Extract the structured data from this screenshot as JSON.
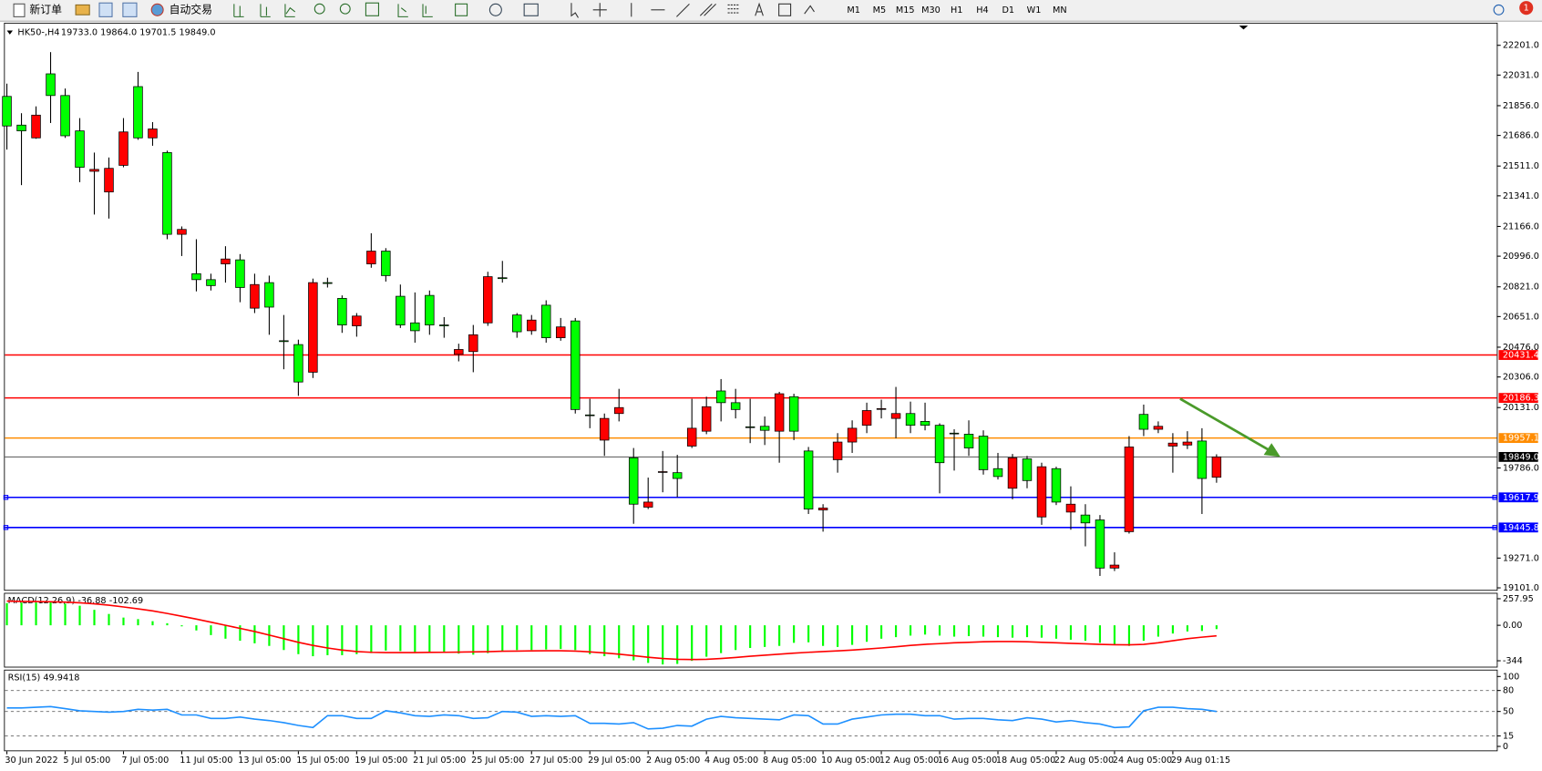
{
  "toolbar": {
    "buttons": [
      "新订单",
      "自动交易"
    ],
    "timeframes": [
      "M1",
      "M5",
      "M15",
      "M30",
      "H1",
      "H4",
      "D1",
      "W1",
      "MN"
    ],
    "notifications": "1"
  },
  "chart_data": {
    "type": "candlestick",
    "symbol": "HK50-,H4",
    "quote": "19733.0 19864.0 19701.5 19849.0",
    "categories": [
      "30 Jun 2022",
      null,
      null,
      null,
      "5 Jul 05:00",
      null,
      null,
      null,
      "7 Jul 05:00",
      null,
      null,
      null,
      "11 Jul 05:00",
      null,
      null,
      null,
      "13 Jul 05:00",
      null,
      null,
      null,
      "15 Jul 05:00",
      null,
      null,
      null,
      "19 Jul 05:00",
      null,
      null,
      null,
      "21 Jul 05:00",
      null,
      null,
      null,
      "25 Jul 05:00",
      null,
      null,
      null,
      "27 Jul 05:00",
      null,
      null,
      null,
      "29 Jul 05:00",
      null,
      null,
      null,
      "2 Aug 05:00",
      null,
      null,
      null,
      "4 Aug 05:00",
      null,
      null,
      null,
      "8 Aug 05:00",
      null,
      null,
      null,
      "10 Aug 05:00",
      null,
      null,
      null,
      "12 Aug 05:00",
      null,
      null,
      null,
      "16 Aug 05:00",
      null,
      null,
      null,
      "18 Aug 05:00",
      null,
      null,
      null,
      "22 Aug 05:00",
      null,
      null,
      null,
      "24 Aug 05:00",
      null,
      null,
      null,
      "29 Aug 01:15",
      null,
      null,
      null
    ],
    "open": [
      21909,
      21745,
      21672,
      22038,
      21914,
      21712,
      21481,
      21363,
      21515,
      21965,
      21672,
      21588,
      21121,
      20896,
      20862,
      20952,
      20975,
      20699,
      20845,
      20513,
      20491,
      20333,
      20845,
      20755,
      20598,
      20952,
      21025,
      20767,
      20615,
      20772,
      20603,
      20435,
      20451,
      20615,
      20873,
      20660,
      20570,
      20716,
      20530,
      20626,
      20089,
      19945,
      20097,
      19844,
      19562,
      19762,
      19759,
      19911,
      19996,
      20226,
      20159,
      20021,
      20024,
      19996,
      20193,
      19883,
      19546,
      19833,
      19934,
      20030,
      20122,
      20069,
      20097,
      20052,
      20030,
      19985,
      19979,
      19968,
      19782,
      19670,
      19838,
      19506,
      19782,
      19534,
      19517,
      19489,
      19214,
      19422,
      20092,
      20007,
      19911,
      19917,
      19940,
      19733
    ],
    "high": [
      21982,
      21813,
      21852,
      22162,
      21954,
      21785,
      21588,
      21560,
      21785,
      22049,
      21762,
      21599,
      21166,
      21093,
      20896,
      21053,
      21008,
      20896,
      20885,
      20660,
      20519,
      20868,
      20873,
      20772,
      20671,
      21127,
      21042,
      20834,
      20789,
      20800,
      20648,
      20496,
      20603,
      20907,
      20969,
      20671,
      20660,
      20744,
      20643,
      20643,
      20181,
      20097,
      20238,
      19900,
      19731,
      19883,
      19861,
      20181,
      20193,
      20294,
      20238,
      20181,
      20080,
      20221,
      20210,
      19906,
      19579,
      19985,
      20058,
      20159,
      20176,
      20249,
      20165,
      20159,
      20041,
      20007,
      20058,
      20001,
      19872,
      19866,
      19855,
      19816,
      19793,
      19681,
      19579,
      19517,
      19304,
      19968,
      20148,
      20052,
      19985,
      19996,
      20013,
      19864
    ],
    "low": [
      21605,
      21402,
      21667,
      21757,
      21672,
      21419,
      21234,
      21211,
      21504,
      21661,
      21627,
      21093,
      20997,
      20795,
      20800,
      20845,
      20733,
      20671,
      20547,
      20350,
      20198,
      20300,
      20817,
      20558,
      20536,
      20930,
      20851,
      20586,
      20502,
      20547,
      20530,
      20395,
      20333,
      20598,
      20845,
      20530,
      20547,
      20502,
      20513,
      20097,
      20013,
      19855,
      20052,
      19467,
      19551,
      19647,
      19619,
      19900,
      19979,
      20052,
      20069,
      19928,
      19917,
      19816,
      19945,
      19523,
      19422,
      19759,
      19872,
      19985,
      20069,
      19956,
      19985,
      20001,
      19641,
      19771,
      19855,
      19748,
      19720,
      19607,
      19670,
      19461,
      19574,
      19433,
      19338,
      19169,
      19197,
      19411,
      19968,
      19985,
      19759,
      19894,
      19523,
      19701.5
    ],
    "close": [
      21740,
      21712,
      21802,
      21914,
      21684,
      21504,
      21492,
      21498,
      21706,
      21672,
      21723,
      21121,
      21149,
      20862,
      20828,
      20980,
      20817,
      20834,
      20705,
      20508,
      20277,
      20845,
      20840,
      20603,
      20654,
      21025,
      20885,
      20603,
      20570,
      20603,
      20598,
      20463,
      20547,
      20879,
      20868,
      20564,
      20631,
      20530,
      20592,
      20120,
      20086,
      20069,
      20131,
      19579,
      19591,
      19765,
      19726,
      20013,
      20136,
      20159,
      20120,
      20018,
      20001,
      20210,
      19996,
      19551,
      19557,
      19934,
      20013,
      20114,
      20125,
      20097,
      20030,
      20030,
      19816,
      19982,
      19900,
      19776,
      19737,
      19844,
      19714,
      19793,
      19591,
      19579,
      19472,
      19214,
      19231,
      19906,
      20007,
      20024,
      19928,
      19934,
      19726,
      19849
    ],
    "up_color": "#ff0000",
    "down_color": "#00ff00",
    "ylim": [
      19089.7,
      22324.8
    ],
    "yticks": [
      {
        "value": 22201,
        "label": "22201.0"
      },
      {
        "value": 22031,
        "label": "22031.0"
      },
      {
        "value": 21856,
        "label": "21856.0"
      },
      {
        "value": 21686,
        "label": "21686.0"
      },
      {
        "value": 21511,
        "label": "21511.0"
      },
      {
        "value": 21341,
        "label": "21341.0"
      },
      {
        "value": 21166,
        "label": "21166.0"
      },
      {
        "value": 20996,
        "label": "20996.0"
      },
      {
        "value": 20821,
        "label": "20821.0"
      },
      {
        "value": 20651,
        "label": "20651.0"
      },
      {
        "value": 20476,
        "label": "20476.0"
      },
      {
        "value": 20306,
        "label": "20306.0"
      },
      {
        "value": 20131,
        "label": "20131.0"
      },
      {
        "value": 19786,
        "label": "19786.0"
      },
      {
        "value": 19271,
        "label": "19271.0"
      },
      {
        "value": 19101,
        "label": "19101.0"
      }
    ],
    "levels": [
      {
        "value": 20431.4,
        "label": "20431.4",
        "color": "#ff0000"
      },
      {
        "value": 20186.3,
        "label": "20186.3",
        "color": "#ff0000"
      },
      {
        "value": 19957.1,
        "label": "19957.1",
        "color": "#ff8c00"
      },
      {
        "value": 19849,
        "label": "19849.0",
        "color": "#000000"
      },
      {
        "value": 19617.9,
        "label": "19617.9",
        "color": "#0000ff"
      },
      {
        "value": 19445.8,
        "label": "19445.8",
        "color": "#0000ff"
      }
    ],
    "macd": {
      "label": "MACD(12,26,9) -36.88 -102.69",
      "ylim": [
        -401,
        306
      ],
      "yticks": [
        257.95,
        {
          "value": 0,
          "label": "0.00"
        },
        -344
      ],
      "histogram_color": "#00ff00",
      "signal_color": "#ff0000",
      "histogram": [
        215,
        220,
        220,
        225,
        210,
        190,
        150,
        110,
        75,
        60,
        40,
        20,
        -10,
        -50,
        -95,
        -130,
        -150,
        -175,
        -200,
        -240,
        -280,
        -300,
        -290,
        -290,
        -280,
        -270,
        -245,
        -250,
        -260,
        -260,
        -265,
        -275,
        -285,
        -270,
        -250,
        -240,
        -240,
        -235,
        -230,
        -240,
        -280,
        -300,
        -320,
        -340,
        -365,
        -380,
        -375,
        -345,
        -305,
        -270,
        -240,
        -220,
        -210,
        -200,
        -170,
        -165,
        -200,
        -210,
        -190,
        -160,
        -130,
        -115,
        -100,
        -90,
        -100,
        -110,
        -105,
        -110,
        -115,
        -120,
        -115,
        -120,
        -130,
        -140,
        -150,
        -170,
        -190,
        -200,
        -150,
        -110,
        -80,
        -60,
        -55,
        -36.88
      ],
      "signal": [
        235,
        232,
        230,
        228,
        225,
        218,
        208,
        195,
        178,
        160,
        140,
        115,
        88,
        60,
        30,
        0,
        -30,
        -60,
        -95,
        -130,
        -165,
        -195,
        -220,
        -240,
        -255,
        -262,
        -265,
        -265,
        -265,
        -263,
        -262,
        -260,
        -258,
        -256,
        -252,
        -250,
        -248,
        -247,
        -247,
        -250,
        -258,
        -268,
        -280,
        -295,
        -310,
        -322,
        -330,
        -332,
        -330,
        -322,
        -312,
        -300,
        -290,
        -280,
        -270,
        -262,
        -255,
        -248,
        -240,
        -230,
        -220,
        -208,
        -195,
        -185,
        -178,
        -170,
        -165,
        -160,
        -158,
        -158,
        -160,
        -165,
        -170,
        -175,
        -180,
        -185,
        -188,
        -190,
        -185,
        -170,
        -150,
        -130,
        -115,
        -102.69
      ]
    },
    "rsi": {
      "label": "RSI(15) 49.9418",
      "ylim": [
        -5.6,
        108.5
      ],
      "yticks": [
        100,
        80,
        50,
        15,
        0
      ],
      "color": "#1e90ff",
      "values": [
        55,
        55,
        56,
        57,
        54,
        51,
        50,
        49,
        50,
        53,
        52,
        53,
        45,
        45,
        40,
        40,
        42,
        39,
        37,
        34,
        30,
        27,
        44,
        44,
        40,
        40,
        51,
        48,
        44,
        43,
        45,
        44,
        40,
        41,
        50,
        49,
        43,
        44,
        43,
        44,
        33,
        33,
        32,
        34,
        25,
        26,
        30,
        29,
        39,
        43,
        41,
        40,
        39,
        38,
        45,
        44,
        32,
        32,
        39,
        42,
        45,
        46,
        46,
        44,
        44,
        39,
        40,
        40,
        38,
        37,
        41,
        39,
        35,
        37,
        34,
        32,
        27,
        28,
        51,
        56,
        56,
        54,
        53,
        49.9418
      ]
    }
  }
}
